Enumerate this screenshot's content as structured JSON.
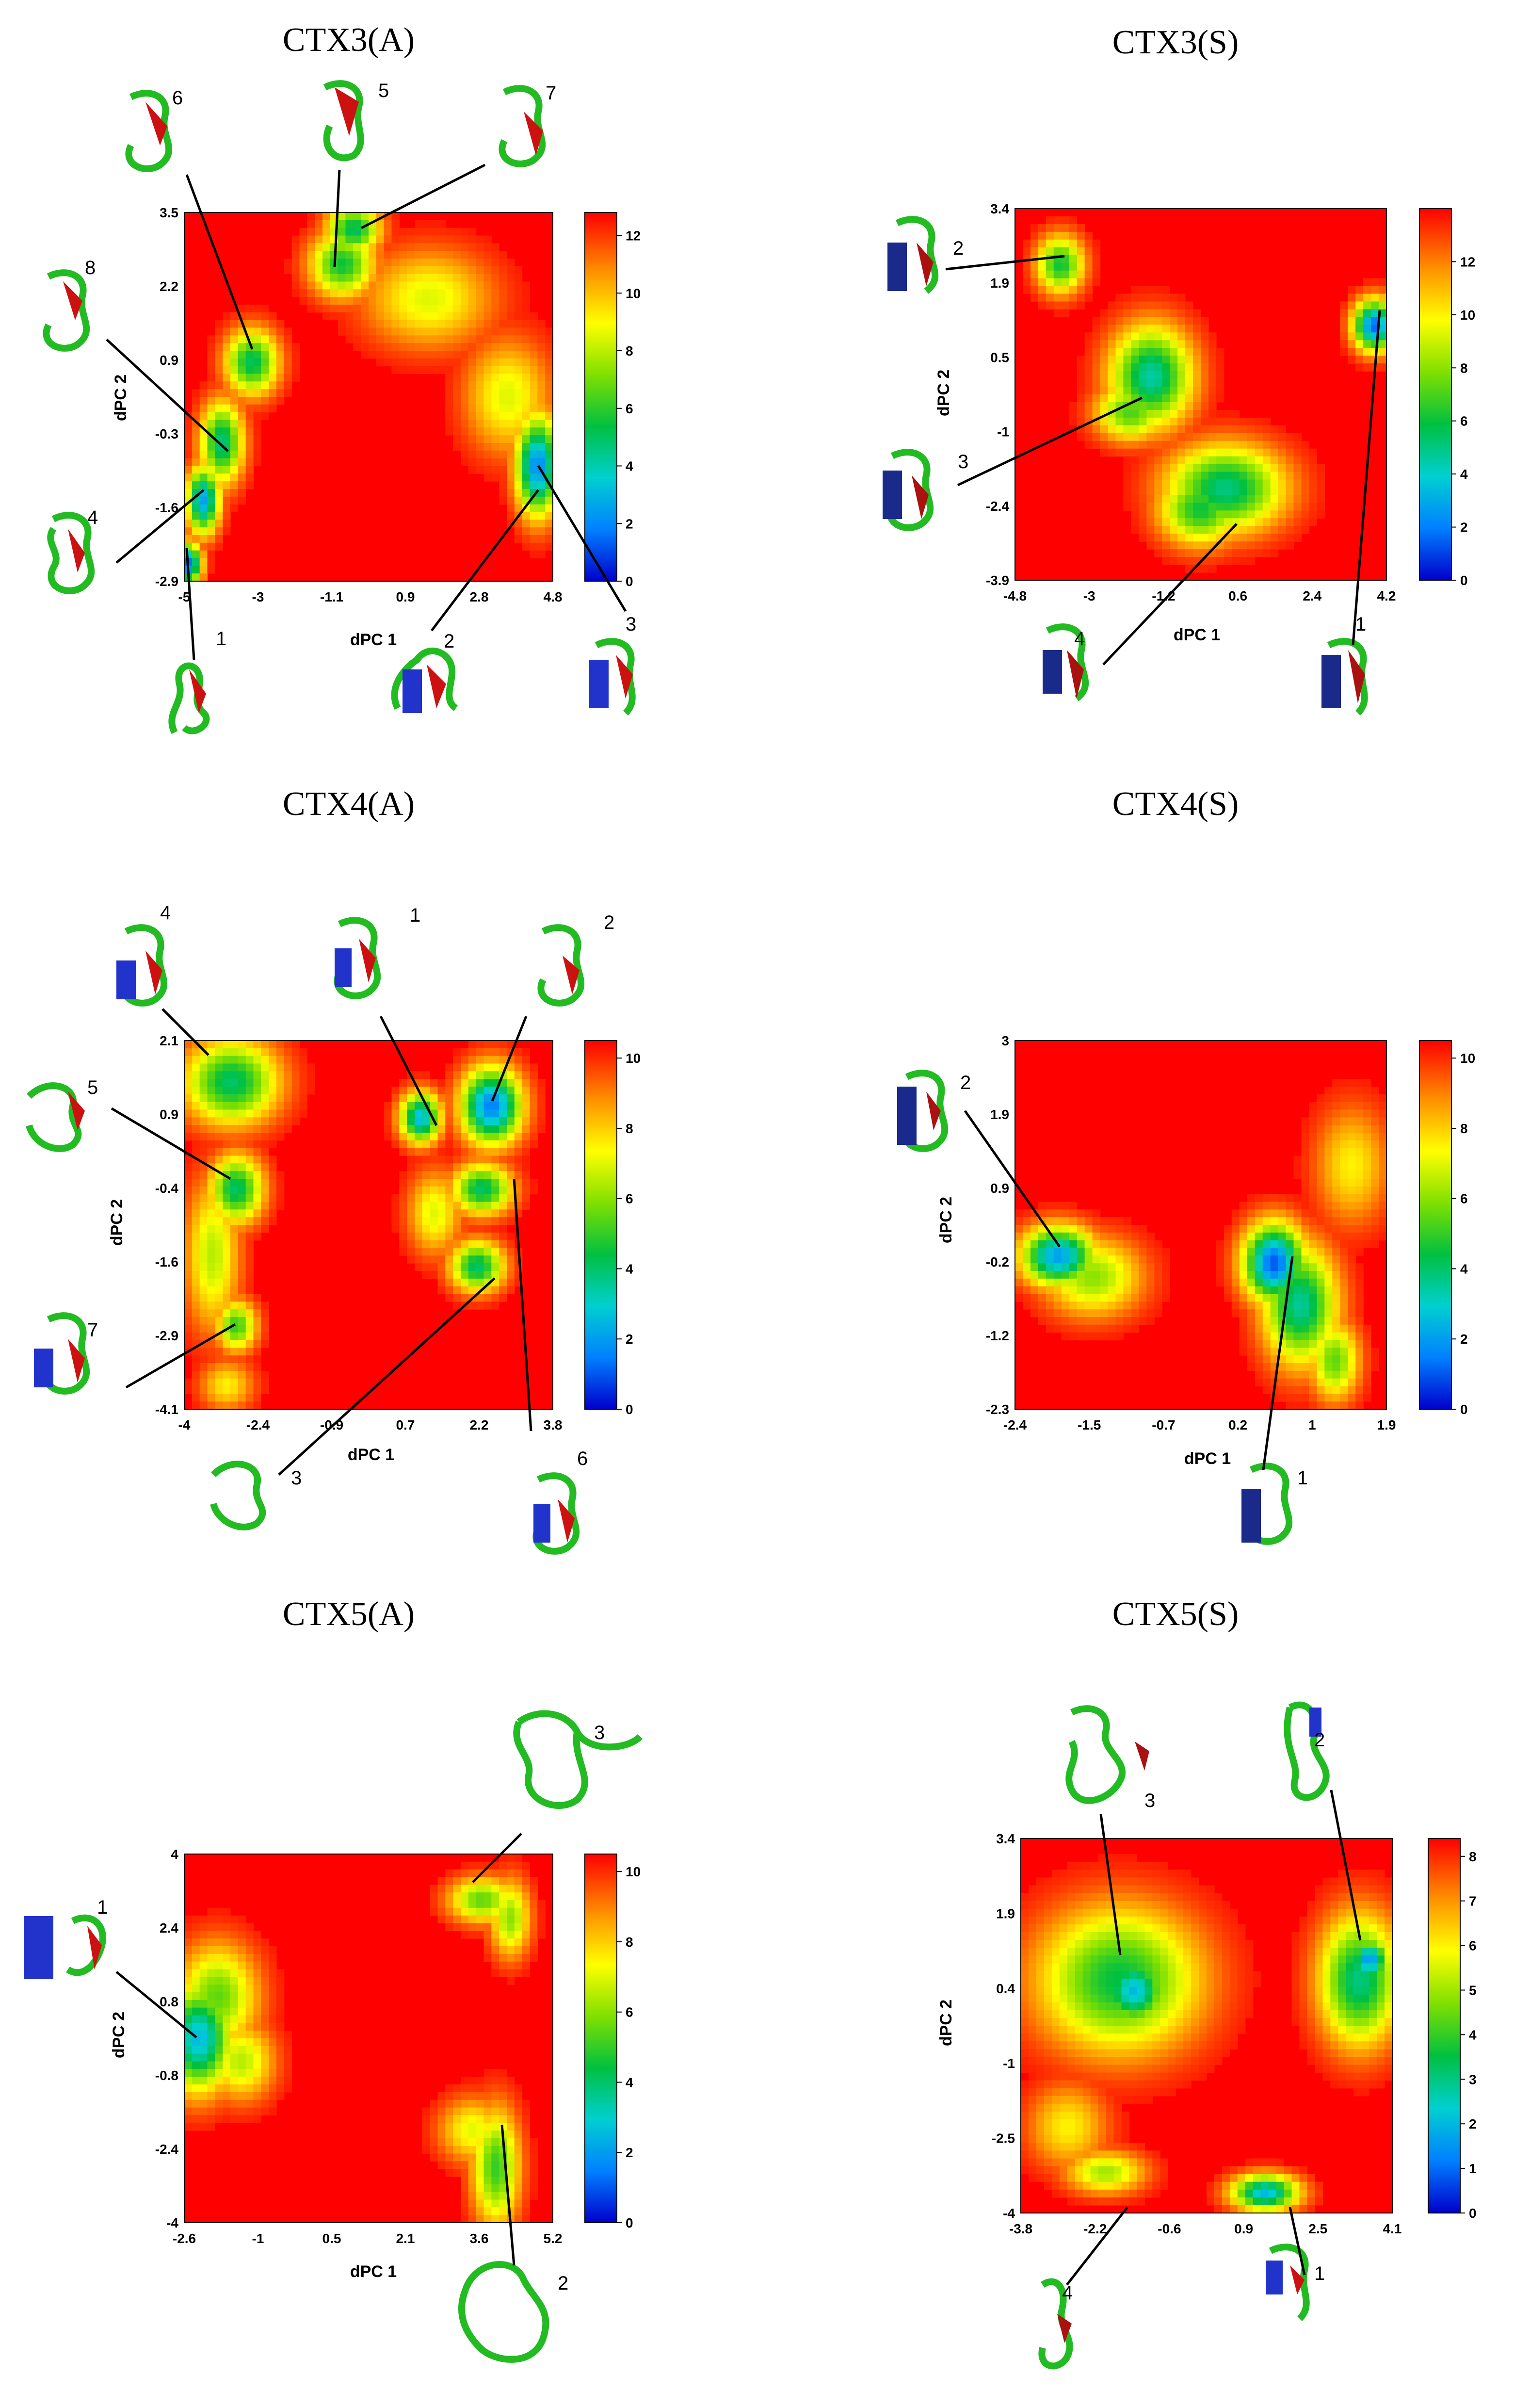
{
  "chart_data": [
    {
      "type": "heatmap",
      "title": "CTX3(A)",
      "xlabel": "dPC 1",
      "ylabel": "dPC 2",
      "xticks": [
        "-5",
        "-3",
        "-1.1",
        "0.9",
        "2.8",
        "4.8"
      ],
      "yticks": [
        "-2.9",
        "-1.6",
        "-0.3",
        "0.9",
        "2.2",
        "3.5"
      ],
      "xlim": [
        -5,
        4.8
      ],
      "ylim": [
        -2.9,
        3.5
      ],
      "colorbar": {
        "ticks": [
          "0",
          "2",
          "4",
          "6",
          "8",
          "10",
          "12"
        ],
        "max": 12.8
      },
      "basins": [
        {
          "x": -4.9,
          "y": -2.6,
          "depth": 1.5,
          "sx": 0.25,
          "sy": 0.25
        },
        {
          "x": -4.5,
          "y": -1.5,
          "depth": 2.5,
          "sx": 0.3,
          "sy": 0.4
        },
        {
          "x": -4.0,
          "y": -0.5,
          "depth": 4.5,
          "sx": 0.4,
          "sy": 0.5
        },
        {
          "x": -3.2,
          "y": 0.9,
          "depth": 5.0,
          "sx": 0.5,
          "sy": 0.4
        },
        {
          "x": -0.8,
          "y": 2.6,
          "depth": 5.5,
          "sx": 0.6,
          "sy": 0.4
        },
        {
          "x": -0.5,
          "y": 3.2,
          "depth": 5.0,
          "sx": 0.5,
          "sy": 0.3
        },
        {
          "x": 4.4,
          "y": -0.9,
          "depth": 2.0,
          "sx": 0.4,
          "sy": 0.6
        },
        {
          "x": 1.5,
          "y": 2.0,
          "depth": 8.5,
          "sx": 1.2,
          "sy": 0.6
        },
        {
          "x": 3.6,
          "y": 0.3,
          "depth": 8.5,
          "sx": 0.8,
          "sy": 0.7
        }
      ],
      "annotations": [
        {
          "label": "1",
          "x": -4.9,
          "y": -2.6
        },
        {
          "label": "2",
          "x": 4.5,
          "y": -0.8
        },
        {
          "label": "3",
          "x": 4.3,
          "y": -0.6
        },
        {
          "label": "4",
          "x": -4.3,
          "y": -1.4
        },
        {
          "label": "5",
          "x": -0.9,
          "y": 2.2
        },
        {
          "label": "6",
          "x": -3.1,
          "y": 1.0
        },
        {
          "label": "7",
          "x": -0.3,
          "y": 3.3
        },
        {
          "label": "8",
          "x": -3.9,
          "y": -0.4
        }
      ]
    },
    {
      "type": "heatmap",
      "title": "CTX3(S)",
      "xlabel": "dPC 1",
      "ylabel": "dPC 2",
      "xticks": [
        "-4.8",
        "-3",
        "-1.2",
        "0.6",
        "2.4",
        "4.2"
      ],
      "yticks": [
        "-3.9",
        "-2.4",
        "-1",
        "0.5",
        "1.9",
        "3.4"
      ],
      "xlim": [
        -4.8,
        4.2
      ],
      "ylim": [
        -3.9,
        3.4
      ],
      "colorbar": {
        "ticks": [
          "0",
          "2",
          "4",
          "6",
          "8",
          "10",
          "12"
        ],
        "max": 14
      },
      "basins": [
        {
          "x": -3.7,
          "y": 2.3,
          "depth": 6.0,
          "sx": 0.4,
          "sy": 0.4
        },
        {
          "x": -1.5,
          "y": 0.1,
          "depth": 4.5,
          "sx": 0.7,
          "sy": 0.7
        },
        {
          "x": -2.0,
          "y": -0.6,
          "depth": 7.0,
          "sx": 0.6,
          "sy": 0.4
        },
        {
          "x": 0.3,
          "y": -2.1,
          "depth": 5.0,
          "sx": 1.0,
          "sy": 0.6
        },
        {
          "x": -0.3,
          "y": -2.5,
          "depth": 6.0,
          "sx": 0.7,
          "sy": 0.5
        },
        {
          "x": 3.9,
          "y": 1.1,
          "depth": 1.5,
          "sx": 0.35,
          "sy": 0.35
        }
      ],
      "annotations": [
        {
          "label": "1",
          "x": 4.0,
          "y": 1.2
        },
        {
          "label": "2",
          "x": -3.6,
          "y": 2.4
        },
        {
          "label": "3",
          "x": -1.6,
          "y": 0.2
        },
        {
          "label": "4",
          "x": 0.4,
          "y": -1.5
        }
      ]
    },
    {
      "type": "heatmap",
      "title": "CTX4(A)",
      "xlabel": "dPC 1",
      "ylabel": "dPC 2",
      "xticks": [
        "-4",
        "-2.4",
        "-0.9",
        "0.7",
        "2.2",
        "3.8"
      ],
      "yticks": [
        "-4.1",
        "-2.9",
        "-1.6",
        "-0.4",
        "0.9",
        "2.1"
      ],
      "xlim": [
        -4,
        3.8
      ],
      "ylim": [
        -4.1,
        2.1
      ],
      "colorbar": {
        "ticks": [
          "0",
          "2",
          "4",
          "6",
          "8",
          "10"
        ],
        "max": 10.5
      },
      "basins": [
        {
          "x": -3.0,
          "y": 1.4,
          "depth": 4.0,
          "sx": 0.7,
          "sy": 0.5
        },
        {
          "x": -2.9,
          "y": -0.4,
          "depth": 4.0,
          "sx": 0.4,
          "sy": 0.4
        },
        {
          "x": -3.4,
          "y": -1.5,
          "depth": 6.5,
          "sx": 0.4,
          "sy": 0.9
        },
        {
          "x": -2.9,
          "y": -2.7,
          "depth": 5.0,
          "sx": 0.3,
          "sy": 0.3
        },
        {
          "x": -3.1,
          "y": -3.7,
          "depth": 7.5,
          "sx": 0.4,
          "sy": 0.3
        },
        {
          "x": 1.0,
          "y": 0.8,
          "depth": 2.5,
          "sx": 0.3,
          "sy": 0.3
        },
        {
          "x": 2.5,
          "y": 1.0,
          "depth": 1.5,
          "sx": 0.45,
          "sy": 0.45
        },
        {
          "x": 2.3,
          "y": -0.4,
          "depth": 4.0,
          "sx": 0.45,
          "sy": 0.3
        },
        {
          "x": 2.2,
          "y": -1.7,
          "depth": 4.0,
          "sx": 0.4,
          "sy": 0.3
        },
        {
          "x": 1.3,
          "y": -0.8,
          "depth": 7.0,
          "sx": 0.4,
          "sy": 0.5
        }
      ],
      "annotations": [
        {
          "label": "1",
          "x": 1.0,
          "y": 0.8
        },
        {
          "label": "2",
          "x": 2.4,
          "y": 1.0
        },
        {
          "label": "3",
          "x": 2.3,
          "y": -1.8
        },
        {
          "label": "4",
          "x": -3.6,
          "y": 2.0
        },
        {
          "label": "5",
          "x": -2.9,
          "y": -0.4
        },
        {
          "label": "6",
          "x": 2.5,
          "y": -0.5
        },
        {
          "label": "7",
          "x": -2.9,
          "y": -2.7
        }
      ]
    },
    {
      "type": "heatmap",
      "title": "CTX4(S)",
      "xlabel": "dPC 1",
      "ylabel": "dPC 2",
      "xticks": [
        "-2.4",
        "-1.5",
        "-0.7",
        "0.2",
        "1",
        "1.9"
      ],
      "yticks": [
        "-2.3",
        "-1.2",
        "-0.2",
        "0.9",
        "1.9",
        "3"
      ],
      "xlim": [
        -2.4,
        1.9
      ],
      "ylim": [
        -2.3,
        3
      ],
      "colorbar": {
        "ticks": [
          "0",
          "2",
          "4",
          "6",
          "8",
          "10"
        ],
        "max": 10.5
      },
      "basins": [
        {
          "x": -1.9,
          "y": -0.1,
          "depth": 2.0,
          "sx": 0.3,
          "sy": 0.3
        },
        {
          "x": -1.5,
          "y": -0.4,
          "depth": 6.0,
          "sx": 0.4,
          "sy": 0.4
        },
        {
          "x": 0.6,
          "y": -0.2,
          "depth": 1.0,
          "sx": 0.25,
          "sy": 0.4
        },
        {
          "x": 0.9,
          "y": -0.8,
          "depth": 3.5,
          "sx": 0.3,
          "sy": 0.6
        },
        {
          "x": 1.3,
          "y": -1.6,
          "depth": 5.5,
          "sx": 0.2,
          "sy": 0.4
        },
        {
          "x": 1.5,
          "y": 1.2,
          "depth": 7.5,
          "sx": 0.3,
          "sy": 0.6
        }
      ],
      "annotations": [
        {
          "label": "1",
          "x": 0.6,
          "y": -0.3
        },
        {
          "label": "2",
          "x": -1.9,
          "y": -0.1
        }
      ]
    },
    {
      "type": "heatmap",
      "title": "CTX5(A)",
      "xlabel": "dPC 1",
      "ylabel": "dPC 2",
      "xticks": [
        "-2.6",
        "-1",
        "0.5",
        "2.1",
        "3.6",
        "5.2"
      ],
      "yticks": [
        "-4",
        "-2.4",
        "-0.8",
        "0.8",
        "2.4",
        "4"
      ],
      "xlim": [
        -2.6,
        5.2
      ],
      "ylim": [
        -4,
        4
      ],
      "colorbar": {
        "ticks": [
          "0",
          "2",
          "4",
          "6",
          "8",
          "10"
        ],
        "max": 10.5
      },
      "basins": [
        {
          "x": -2.3,
          "y": 0.0,
          "depth": 2.5,
          "sx": 0.5,
          "sy": 0.8
        },
        {
          "x": -1.9,
          "y": 0.9,
          "depth": 5.5,
          "sx": 0.6,
          "sy": 0.8
        },
        {
          "x": -1.4,
          "y": -0.5,
          "depth": 6.5,
          "sx": 0.5,
          "sy": 0.6
        },
        {
          "x": 3.7,
          "y": 3.0,
          "depth": 5.5,
          "sx": 0.5,
          "sy": 0.35
        },
        {
          "x": 4.3,
          "y": 2.6,
          "depth": 6.0,
          "sx": 0.3,
          "sy": 0.6
        },
        {
          "x": 4.0,
          "y": -2.8,
          "depth": 5.0,
          "sx": 0.35,
          "sy": 0.9
        },
        {
          "x": 3.5,
          "y": -2.0,
          "depth": 7.0,
          "sx": 0.5,
          "sy": 0.5
        }
      ],
      "annotations": [
        {
          "label": "1",
          "x": -2.3,
          "y": -0.2
        },
        {
          "label": "2",
          "x": 4.1,
          "y": -2.3
        },
        {
          "label": "3",
          "x": 3.7,
          "y": 3.0
        }
      ]
    },
    {
      "type": "heatmap",
      "title": "CTX5(S)",
      "xlabel": "",
      "ylabel": "dPC 2",
      "xticks": [
        "-3.8",
        "-2.2",
        "-0.6",
        "0.9",
        "2.5",
        "4.1"
      ],
      "yticks": [
        "-4",
        "-2.5",
        "-1",
        "0.4",
        "1.9",
        "3.4"
      ],
      "xlim": [
        -3.8,
        4.1
      ],
      "ylim": [
        -4,
        3.4
      ],
      "colorbar": {
        "ticks": [
          "0",
          "1",
          "2",
          "3",
          "4",
          "5",
          "6",
          "7",
          "8"
        ],
        "max": 8.4
      },
      "basins": [
        {
          "x": -1.7,
          "y": 0.6,
          "depth": 3.5,
          "sx": 1.2,
          "sy": 1.0
        },
        {
          "x": -1.4,
          "y": 0.4,
          "depth": 2.0,
          "sx": 0.5,
          "sy": 0.5
        },
        {
          "x": 3.4,
          "y": 0.6,
          "depth": 3.0,
          "sx": 0.6,
          "sy": 0.9
        },
        {
          "x": 3.6,
          "y": 1.0,
          "depth": 1.5,
          "sx": 0.3,
          "sy": 0.3
        },
        {
          "x": -2.8,
          "y": -2.3,
          "depth": 6.0,
          "sx": 0.6,
          "sy": 0.6
        },
        {
          "x": -2.0,
          "y": -3.2,
          "depth": 5.0,
          "sx": 0.6,
          "sy": 0.3
        },
        {
          "x": 1.4,
          "y": -3.6,
          "depth": 2.0,
          "sx": 0.5,
          "sy": 0.25
        }
      ],
      "annotations": [
        {
          "label": "1",
          "x": 1.3,
          "y": -3.6
        },
        {
          "label": "2",
          "x": 3.6,
          "y": 0.8
        },
        {
          "label": "3",
          "x": -1.4,
          "y": 0.4
        },
        {
          "label": "4",
          "x": -1.6,
          "y": -3.0
        }
      ]
    }
  ]
}
